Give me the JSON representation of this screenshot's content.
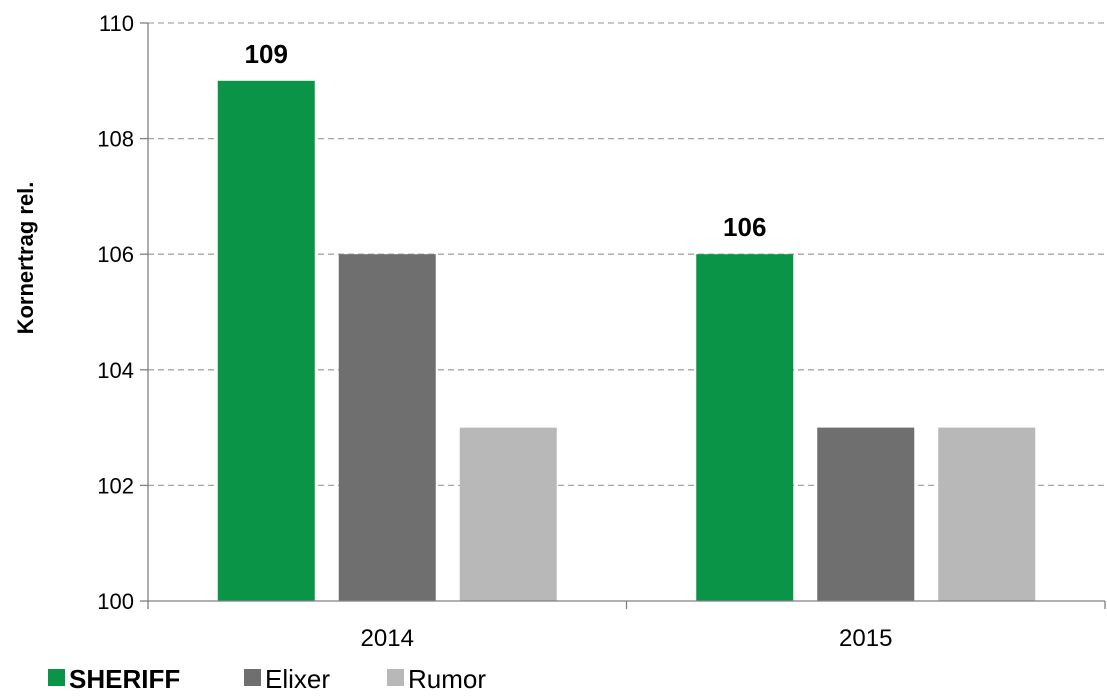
{
  "chart_data": {
    "type": "bar",
    "categories": [
      "2014",
      "2015"
    ],
    "series": [
      {
        "name": "SHERIFF",
        "values": [
          109,
          106
        ],
        "color": "#0a9447",
        "data_labels": [
          "109",
          "106"
        ]
      },
      {
        "name": "Elixer",
        "values": [
          106,
          103
        ],
        "color": "#6f6f6f"
      },
      {
        "name": "Rumor",
        "values": [
          103,
          103
        ],
        "color": "#b8b8b8"
      }
    ],
    "ylabel": "Kornertrag rel.",
    "ylim": [
      100,
      110
    ],
    "yticks": [
      "100",
      "102",
      "104",
      "106",
      "108",
      "110"
    ],
    "grid": true,
    "legend_position": "bottom-left"
  }
}
